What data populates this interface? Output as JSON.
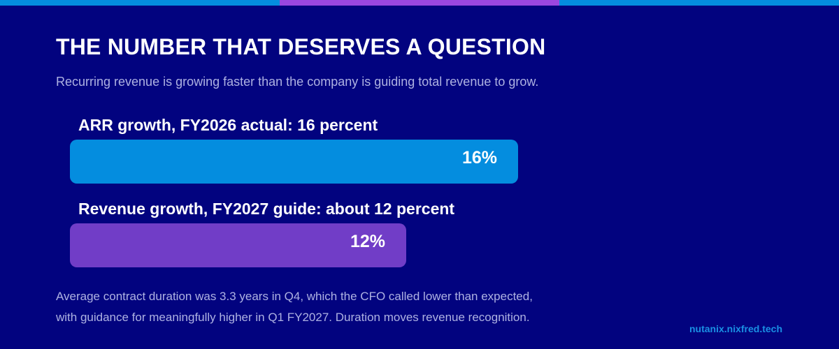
{
  "colors": {
    "background": "#02037f",
    "blue": "#048ddf",
    "purple": "#713dc7",
    "muted_text": "#aeb2e2",
    "watermark": "#1a90e4"
  },
  "header": {
    "title": "THE NUMBER THAT DESERVES A QUESTION",
    "subtitle": "Recurring revenue is growing faster than the company is guiding total revenue to grow."
  },
  "chart_data": {
    "type": "bar",
    "orientation": "horizontal",
    "title": "THE NUMBER THAT DESERVES A QUESTION",
    "subtitle": "Recurring revenue is growing faster than the company is guiding total revenue to grow.",
    "categories": [
      "ARR growth, FY2026 actual: 16 percent",
      "Revenue growth, FY2027 guide: about 12 percent"
    ],
    "values": [
      16,
      12
    ],
    "value_labels": [
      "16%",
      "12%"
    ],
    "unit": "%",
    "colors": [
      "#048ddf",
      "#713dc7"
    ],
    "grid": false,
    "legend": "none"
  },
  "footnote": {
    "line1": "Average contract duration was 3.3 years in Q4, which the CFO called lower than expected,",
    "line2": "with guidance for meaningfully higher in Q1 FY2027. Duration moves revenue recognition."
  },
  "watermark": "nutanix.nixfred.tech"
}
